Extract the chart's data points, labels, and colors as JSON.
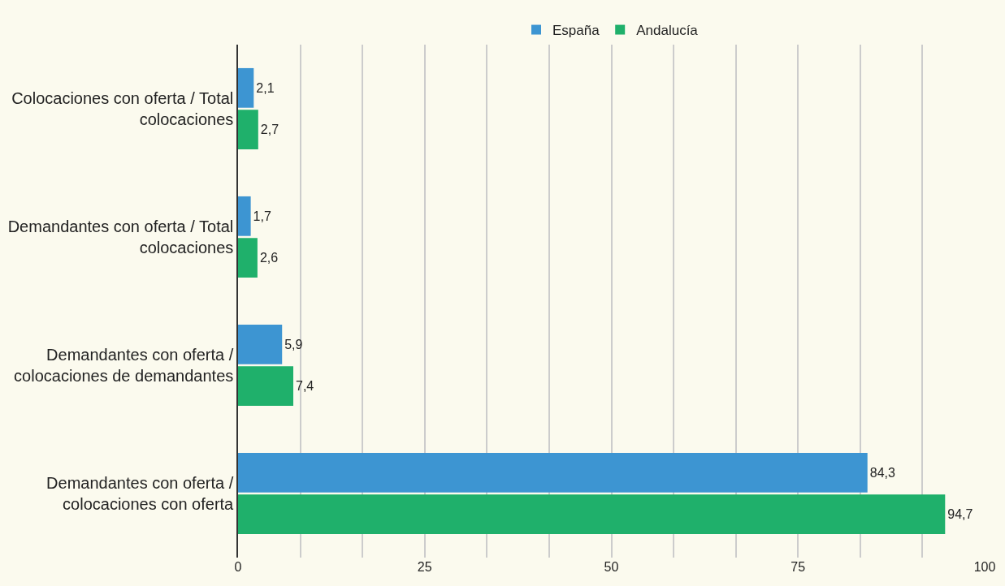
{
  "chart_data": {
    "type": "bar",
    "orientation": "horizontal",
    "categories": [
      "Colocaciones con oferta / Total colocaciones",
      "Demandantes con oferta / Total colocaciones",
      "Demandantes con oferta / colocaciones de demandantes",
      "Demandantes con oferta / colocaciones con oferta"
    ],
    "series": [
      {
        "name": "España",
        "color": "#3d95d2",
        "values": [
          2.1,
          1.7,
          5.9,
          84.3
        ],
        "value_labels": [
          "2,1",
          "1,7",
          "5,9",
          "84,3"
        ]
      },
      {
        "name": "Andalucía",
        "color": "#1fb06b",
        "values": [
          2.7,
          2.6,
          7.4,
          94.7
        ],
        "value_labels": [
          "2,7",
          "2,6",
          "7,4",
          "94,7"
        ]
      }
    ],
    "xlim": [
      0,
      100
    ],
    "xticks": [
      0,
      {
        "value": 8.333,
        "label": null
      },
      {
        "value": 16.667,
        "label": null
      },
      25,
      {
        "value": 33.333,
        "label": null
      },
      {
        "value": 41.667,
        "label": null
      },
      50,
      {
        "value": 58.333,
        "label": null
      },
      {
        "value": 66.667,
        "label": null
      },
      75,
      {
        "value": 83.333,
        "label": null
      },
      {
        "value": 91.667,
        "label": null
      },
      100
    ],
    "grid": "x",
    "legend": "top"
  }
}
